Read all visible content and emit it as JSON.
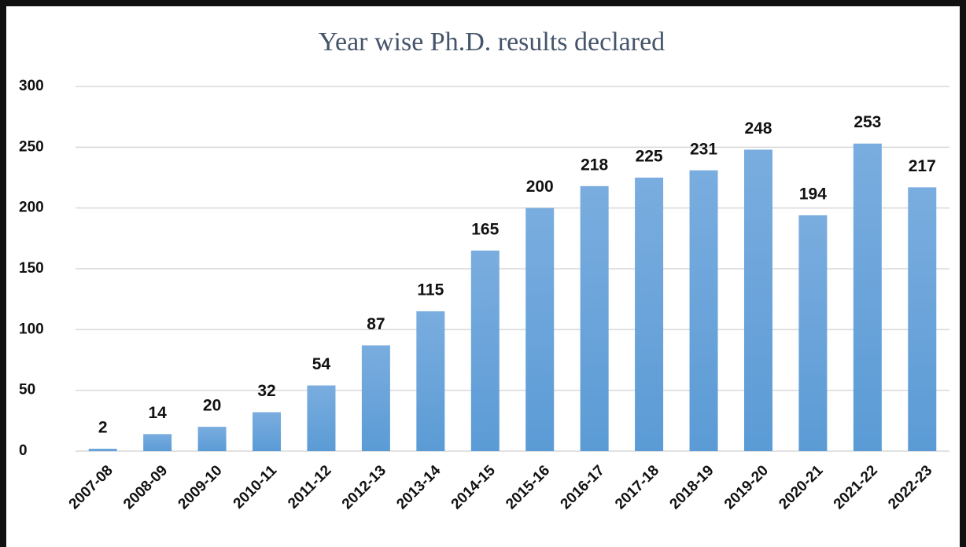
{
  "chart_data": {
    "type": "bar",
    "title": "Year wise Ph.D. results declared",
    "categories": [
      "2007-08",
      "2008-09",
      "2009-10",
      "2010-11",
      "2011-12",
      "2012-13",
      "2013-14",
      "2014-15",
      "2015-16",
      "2016-17",
      "2017-18",
      "2018-19",
      "2019-20",
      "2020-21",
      "2021-22",
      "2022-23"
    ],
    "values": [
      2,
      14,
      20,
      32,
      54,
      87,
      115,
      165,
      200,
      218,
      225,
      231,
      248,
      194,
      253,
      217
    ],
    "color": "#5b9bd5",
    "ylim": [
      0,
      300
    ],
    "yticks": [
      0,
      50,
      100,
      150,
      200,
      250,
      300
    ],
    "grid": true
  }
}
